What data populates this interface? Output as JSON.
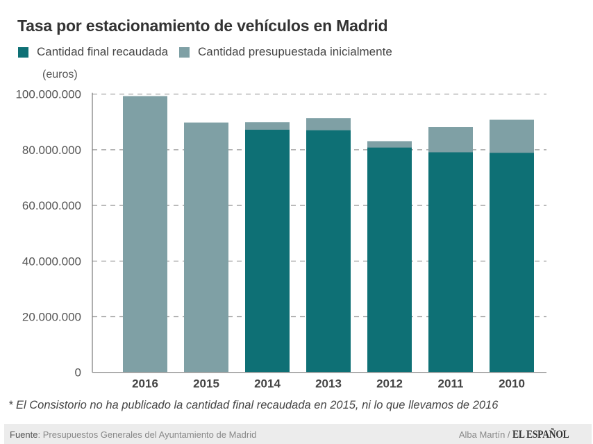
{
  "chart_data": {
    "type": "bar",
    "stacked": "overlay",
    "title": "Tasa por estacionamiento de vehículos en Madrid",
    "ylabel": "(euros)",
    "xlabel": "",
    "ylim": [
      0,
      100000000
    ],
    "yticks": [
      0,
      20000000,
      40000000,
      60000000,
      80000000,
      100000000
    ],
    "ytick_labels": [
      "0",
      "20.000.000",
      "40.000.000",
      "60.000.000",
      "80.000.000",
      "100.000.000"
    ],
    "grid": true,
    "legend_position": "top-left",
    "categories": [
      "2016",
      "2015",
      "2014",
      "2013",
      "2012",
      "2011",
      "2010"
    ],
    "series": [
      {
        "name": "Cantidad presupuestada inicialmente",
        "color": "#7fa0a5",
        "values": [
          99300000,
          89800000,
          89900000,
          91400000,
          83100000,
          88200000,
          90800000
        ]
      },
      {
        "name": "Cantidad final recaudada",
        "color": "#0e7075",
        "values": [
          null,
          null,
          87200000,
          87000000,
          80800000,
          79100000,
          78900000
        ]
      }
    ]
  },
  "legend": [
    {
      "label": "Cantidad final recaudada",
      "color": "#0e7075"
    },
    {
      "label": "Cantidad presupuestada inicialmente",
      "color": "#7fa0a5"
    }
  ],
  "footnote": "* El  Consistorio no ha publicado la cantidad final recaudada en 2015, ni lo que llevamos de 2016",
  "footer": {
    "source_label": "Fuente",
    "source_text": ": Presupuestos Generales del Ayuntamiento de Madrid",
    "author": "Alba Martín / ",
    "brand": "EL ESPAÑOL"
  }
}
